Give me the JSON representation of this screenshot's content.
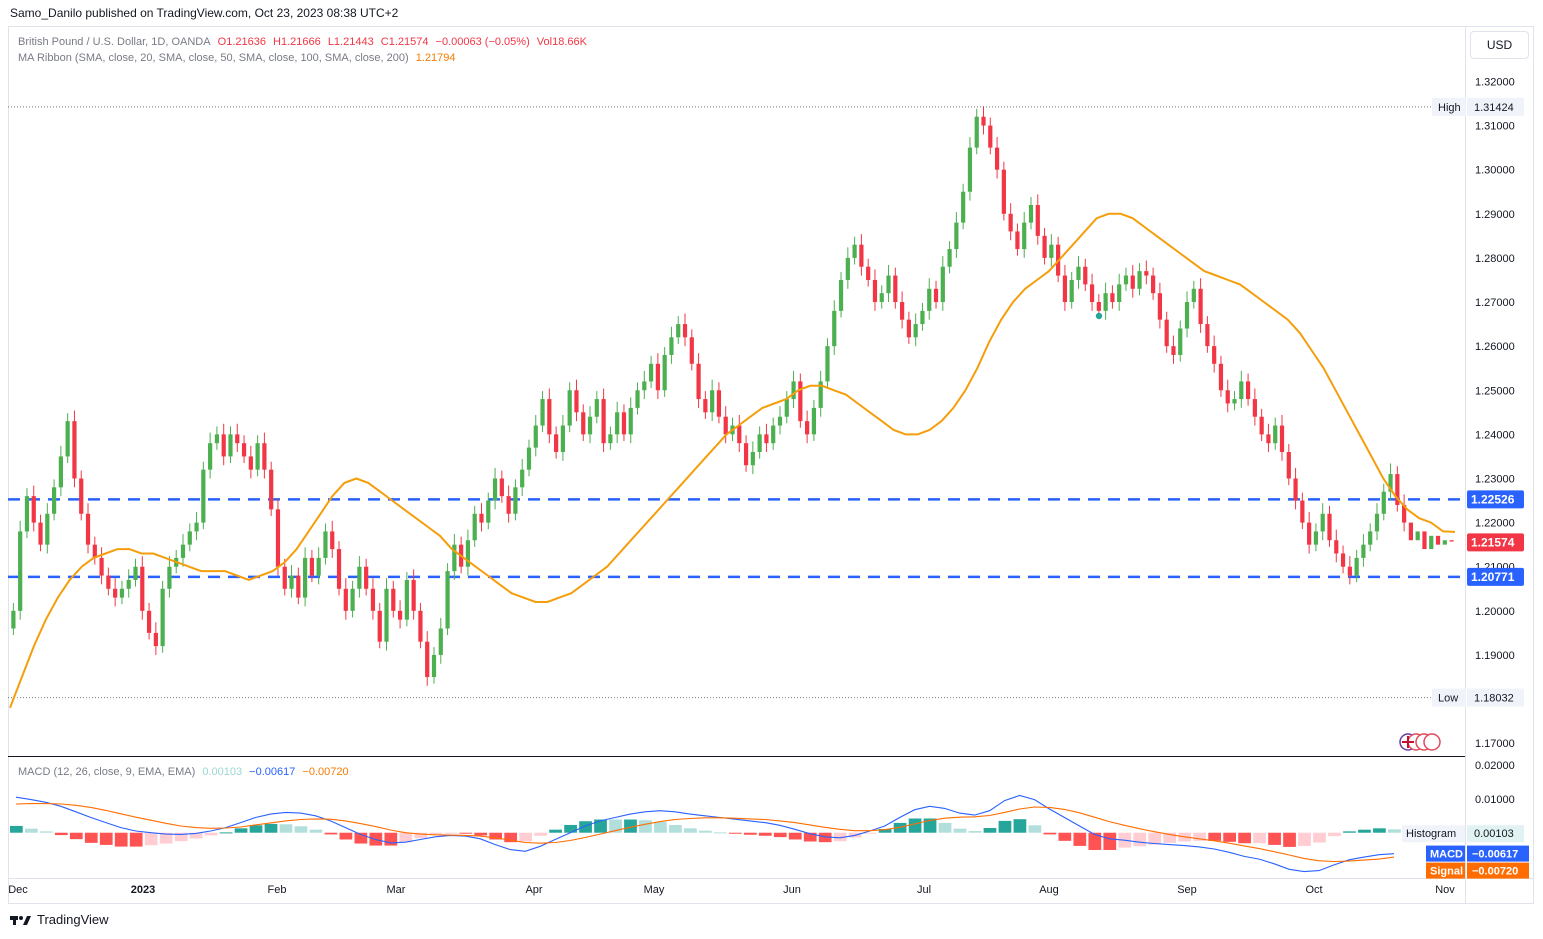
{
  "header": {
    "publisher": "Samo_Danilo published on TradingView.com, Oct 23, 2023 08:38 UTC+2"
  },
  "legend": {
    "symbol": "British Pound / U.S. Dollar, 1D, OANDA",
    "open": "O1.21636",
    "high": "H1.21666",
    "low": "L1.21443",
    "close": "C1.21574",
    "change": "−0.00063 (−0.05%)",
    "vol": "Vol18.66K",
    "ma_label": "MA Ribbon (SMA, close, 20, SMA, close, 50, SMA, close, 100, SMA, close, 200)",
    "ma_value": "1.21794",
    "macd_label": "MACD (12, 26, close, 9, EMA, EMA)",
    "macd_hist": "0.00103",
    "macd_line": "−0.00617",
    "macd_signal": "−0.00720"
  },
  "currency_button": "USD",
  "footer": {
    "brand": "TradingView"
  },
  "colors": {
    "up": "#26a69a",
    "up_candle": "#4caf50",
    "down": "#f23645",
    "ma": "#f59e0b",
    "level": "#2962ff",
    "macd": "#2962ff",
    "signal": "#ff6d00"
  },
  "chart_data": [
    {
      "type": "candlestick",
      "title": "British Pound / U.S. Dollar, 1D, OANDA",
      "x_ticks": [
        "Dec",
        "2023",
        "Feb",
        "Mar",
        "Apr",
        "May",
        "Jun",
        "Jul",
        "Aug",
        "Sep",
        "Oct",
        "Nov"
      ],
      "y_ticks": [
        "1.32000",
        "1.31000",
        "1.30000",
        "1.29000",
        "1.28000",
        "1.27000",
        "1.26000",
        "1.25000",
        "1.24000",
        "1.23000",
        "1.22000",
        "1.21000",
        "1.20000",
        "1.19000",
        "1.18000",
        "1.17000"
      ],
      "ylim": [
        1.168,
        1.3235
      ],
      "close_series": [
        1.2,
        1.218,
        1.226,
        1.22,
        1.215,
        1.222,
        1.228,
        1.235,
        1.243,
        1.23,
        1.222,
        1.215,
        1.212,
        1.208,
        1.205,
        1.203,
        1.205,
        1.207,
        1.21,
        1.2,
        1.195,
        1.192,
        1.205,
        1.21,
        1.212,
        1.215,
        1.218,
        1.22,
        1.232,
        1.238,
        1.24,
        1.235,
        1.24,
        1.238,
        1.235,
        1.232,
        1.238,
        1.232,
        1.223,
        1.21,
        1.205,
        1.208,
        1.203,
        1.212,
        1.208,
        1.212,
        1.218,
        1.214,
        1.205,
        1.2,
        1.205,
        1.21,
        1.205,
        1.2,
        1.193,
        1.205,
        1.2,
        1.198,
        1.207,
        1.2,
        1.193,
        1.185,
        1.19,
        1.196,
        1.209,
        1.215,
        1.21,
        1.216,
        1.222,
        1.22,
        1.225,
        1.23,
        1.226,
        1.222,
        1.228,
        1.232,
        1.237,
        1.242,
        1.248,
        1.24,
        1.236,
        1.242,
        1.25,
        1.245,
        1.24,
        1.244,
        1.248,
        1.238,
        1.24,
        1.245,
        1.24,
        1.246,
        1.25,
        1.252,
        1.256,
        1.25,
        1.258,
        1.262,
        1.265,
        1.262,
        1.256,
        1.248,
        1.245,
        1.25,
        1.244,
        1.24,
        1.242,
        1.238,
        1.233,
        1.236,
        1.24,
        1.238,
        1.242,
        1.244,
        1.248,
        1.252,
        1.243,
        1.24,
        1.246,
        1.252,
        1.26,
        1.268,
        1.275,
        1.28,
        1.283,
        1.278,
        1.275,
        1.27,
        1.272,
        1.276,
        1.27,
        1.266,
        1.262,
        1.265,
        1.268,
        1.273,
        1.27,
        1.278,
        1.282,
        1.288,
        1.295,
        1.305,
        1.312,
        1.31,
        1.305,
        1.3,
        1.29,
        1.286,
        1.282,
        1.288,
        1.292,
        1.285,
        1.28,
        1.283,
        1.276,
        1.27,
        1.275,
        1.278,
        1.274,
        1.27,
        1.268,
        1.272,
        1.27,
        1.274,
        1.276,
        1.273,
        1.277,
        1.276,
        1.272,
        1.266,
        1.26,
        1.258,
        1.264,
        1.27,
        1.273,
        1.265,
        1.26,
        1.256,
        1.25,
        1.247,
        1.248,
        1.252,
        1.248,
        1.244,
        1.24,
        1.238,
        1.242,
        1.236,
        1.23,
        1.225,
        1.22,
        1.215,
        1.218,
        1.222,
        1.216,
        1.213,
        1.21,
        1.208,
        1.212,
        1.215,
        1.218,
        1.222,
        1.227,
        1.231,
        1.224,
        1.22,
        1.216,
        1.218,
        1.214,
        1.217,
        1.215,
        1.216,
        1.2157
      ],
      "candle_wick_noise": [
        0.003,
        0.004,
        0.003,
        0.004,
        0.003,
        0.004,
        0.003,
        0.004,
        0.003,
        0.004,
        0.003,
        0.004,
        0.003,
        0.004,
        0.003,
        0.004,
        0.003,
        0.004,
        0.003,
        0.004,
        0.003,
        0.004,
        0.003,
        0.004,
        0.003,
        0.004,
        0.003,
        0.004,
        0.003,
        0.004,
        0.003,
        0.004,
        0.003,
        0.004,
        0.003,
        0.004,
        0.003,
        0.004,
        0.003,
        0.004,
        0.003,
        0.004,
        0.003,
        0.004,
        0.003,
        0.004,
        0.003,
        0.004,
        0.003,
        0.004,
        0.003,
        0.004,
        0.003,
        0.004,
        0.003,
        0.004,
        0.003,
        0.004,
        0.003,
        0.004,
        0.003,
        0.004,
        0.003,
        0.004,
        0.003,
        0.004,
        0.003,
        0.004,
        0.003,
        0.004,
        0.003,
        0.004,
        0.003,
        0.004,
        0.003,
        0.004,
        0.003,
        0.004,
        0.003,
        0.004,
        0.003,
        0.004,
        0.003,
        0.004,
        0.003,
        0.004,
        0.003,
        0.004,
        0.003,
        0.004,
        0.003,
        0.004,
        0.003,
        0.004,
        0.003,
        0.004,
        0.003,
        0.004,
        0.003,
        0.004,
        0.003,
        0.004,
        0.003,
        0.004,
        0.003,
        0.004,
        0.003,
        0.004,
        0.003,
        0.004,
        0.003,
        0.004,
        0.003,
        0.004,
        0.003,
        0.004,
        0.003,
        0.004,
        0.003,
        0.004,
        0.003,
        0.004,
        0.003,
        0.004,
        0.003,
        0.004,
        0.003,
        0.004,
        0.003,
        0.004,
        0.003,
        0.004,
        0.003,
        0.004,
        0.003,
        0.004,
        0.003,
        0.004,
        0.003,
        0.004,
        0.003,
        0.004,
        0.003,
        0.004,
        0.003,
        0.004,
        0.003,
        0.004,
        0.003,
        0.004,
        0.003,
        0.004,
        0.003,
        0.004,
        0.003,
        0.004,
        0.003,
        0.004,
        0.003,
        0.004,
        0.003,
        0.004,
        0.003,
        0.004,
        0.003,
        0.004,
        0.003,
        0.004,
        0.003,
        0.004,
        0.003,
        0.004,
        0.003,
        0.004,
        0.003,
        0.004,
        0.003,
        0.004,
        0.003,
        0.004,
        0.003,
        0.004,
        0.003,
        0.004,
        0.003,
        0.004,
        0.003,
        0.004,
        0.003,
        0.004,
        0.003,
        0.004,
        0.003,
        0.004,
        0.003,
        0.004,
        0.003,
        0.004,
        0.003,
        0.004,
        0.003,
        0.004,
        0.003,
        0.004,
        0.003,
        0.004
      ],
      "ma20": [
        1.178,
        1.185,
        1.192,
        1.198,
        1.203,
        1.207,
        1.21,
        1.212,
        1.213,
        1.214,
        1.214,
        1.213,
        1.213,
        1.212,
        1.211,
        1.21,
        1.209,
        1.209,
        1.209,
        1.208,
        1.207,
        1.208,
        1.209,
        1.211,
        1.214,
        1.218,
        1.222,
        1.226,
        1.229,
        1.23,
        1.229,
        1.227,
        1.225,
        1.223,
        1.221,
        1.219,
        1.217,
        1.214,
        1.212,
        1.21,
        1.208,
        1.206,
        1.204,
        1.203,
        1.202,
        1.202,
        1.203,
        1.204,
        1.206,
        1.208,
        1.21,
        1.213,
        1.216,
        1.219,
        1.222,
        1.225,
        1.228,
        1.231,
        1.234,
        1.237,
        1.24,
        1.242,
        1.244,
        1.246,
        1.247,
        1.248,
        1.25,
        1.251,
        1.251,
        1.25,
        1.249,
        1.247,
        1.245,
        1.243,
        1.241,
        1.24,
        1.24,
        1.241,
        1.243,
        1.246,
        1.25,
        1.255,
        1.261,
        1.266,
        1.27,
        1.273,
        1.275,
        1.277,
        1.28,
        1.283,
        1.286,
        1.289,
        1.29,
        1.29,
        1.289,
        1.287,
        1.285,
        1.283,
        1.281,
        1.279,
        1.277,
        1.276,
        1.275,
        1.274,
        1.272,
        1.27,
        1.268,
        1.266,
        1.263,
        1.259,
        1.255,
        1.25,
        1.245,
        1.24,
        1.235,
        1.23,
        1.226,
        1.223,
        1.221,
        1.22,
        1.218,
        1.2179
      ],
      "levels": [
        {
          "label": "High",
          "value": "1.31424"
        },
        {
          "label": "",
          "value": "1.22526"
        },
        {
          "label": "",
          "value": "1.21574"
        },
        {
          "label": "",
          "value": "1.20771"
        },
        {
          "label": "Low",
          "value": "1.18032"
        }
      ]
    },
    {
      "type": "macd",
      "y_ticks": [
        "0.02000",
        "0.01000",
        "0.00000"
      ],
      "ylim": [
        -0.0125,
        0.0215
      ],
      "macd": [
        0.0105,
        0.0098,
        0.009,
        0.0078,
        0.0062,
        0.0045,
        0.003,
        0.0015,
        0.0005,
        0.0,
        -0.0004,
        -0.0005,
        -0.0002,
        0.0005,
        0.0015,
        0.003,
        0.0045,
        0.0055,
        0.006,
        0.0058,
        0.005,
        0.0035,
        0.0015,
        -0.0005,
        -0.002,
        -0.003,
        -0.0028,
        -0.002,
        -0.0012,
        -0.0008,
        -0.001,
        -0.0018,
        -0.0035,
        -0.005,
        -0.0055,
        -0.004,
        -0.002,
        0.0,
        0.002,
        0.0035,
        0.0045,
        0.0055,
        0.0062,
        0.0065,
        0.0062,
        0.0055,
        0.005,
        0.0045,
        0.004,
        0.0035,
        0.003,
        0.0022,
        0.001,
        -0.0003,
        -0.0012,
        -0.0015,
        -0.0008,
        0.0005,
        0.002,
        0.0045,
        0.0068,
        0.0078,
        0.0072,
        0.0058,
        0.0052,
        0.0065,
        0.0095,
        0.011,
        0.0098,
        0.007,
        0.0045,
        0.002,
        -0.0005,
        -0.0018,
        -0.0022,
        -0.0028,
        -0.0032,
        -0.0035,
        -0.0038,
        -0.0042,
        -0.0048,
        -0.0058,
        -0.007,
        -0.0078,
        -0.0092,
        -0.0108,
        -0.0115,
        -0.0112,
        -0.0095,
        -0.008,
        -0.0072,
        -0.0065,
        -0.0062
      ],
      "signal": [
        0.0085,
        0.0086,
        0.0086,
        0.0085,
        0.0081,
        0.0075,
        0.0066,
        0.0056,
        0.0046,
        0.0037,
        0.0028,
        0.002,
        0.0015,
        0.0013,
        0.0014,
        0.0017,
        0.0023,
        0.0029,
        0.0035,
        0.0039,
        0.0041,
        0.004,
        0.0035,
        0.0027,
        0.0018,
        0.0008,
        0.0,
        -0.0004,
        -0.0006,
        -0.0007,
        -0.0008,
        -0.001,
        -0.0015,
        -0.0022,
        -0.0029,
        -0.0031,
        -0.0029,
        -0.0023,
        -0.0014,
        -0.0004,
        0.0006,
        0.0016,
        0.0025,
        0.0033,
        0.0039,
        0.0042,
        0.0044,
        0.0044,
        0.0043,
        0.0041,
        0.0039,
        0.0035,
        0.003,
        0.0023,
        0.0016,
        0.001,
        0.0006,
        0.0006,
        0.0009,
        0.0016,
        0.0026,
        0.0036,
        0.0043,
        0.0046,
        0.0047,
        0.0051,
        0.006,
        0.007,
        0.0076,
        0.0075,
        0.0069,
        0.0059,
        0.0046,
        0.0033,
        0.0022,
        0.0012,
        0.0003,
        -0.0005,
        -0.0012,
        -0.0018,
        -0.0024,
        -0.0031,
        -0.0039,
        -0.0047,
        -0.0056,
        -0.0066,
        -0.0076,
        -0.0083,
        -0.0085,
        -0.0084,
        -0.0081,
        -0.0078,
        -0.0072
      ],
      "badges": [
        {
          "label": "Histogram",
          "value": "0.00103"
        },
        {
          "label": "MACD",
          "value": "−0.00617"
        },
        {
          "label": "Signal",
          "value": "−0.00720"
        }
      ]
    }
  ]
}
